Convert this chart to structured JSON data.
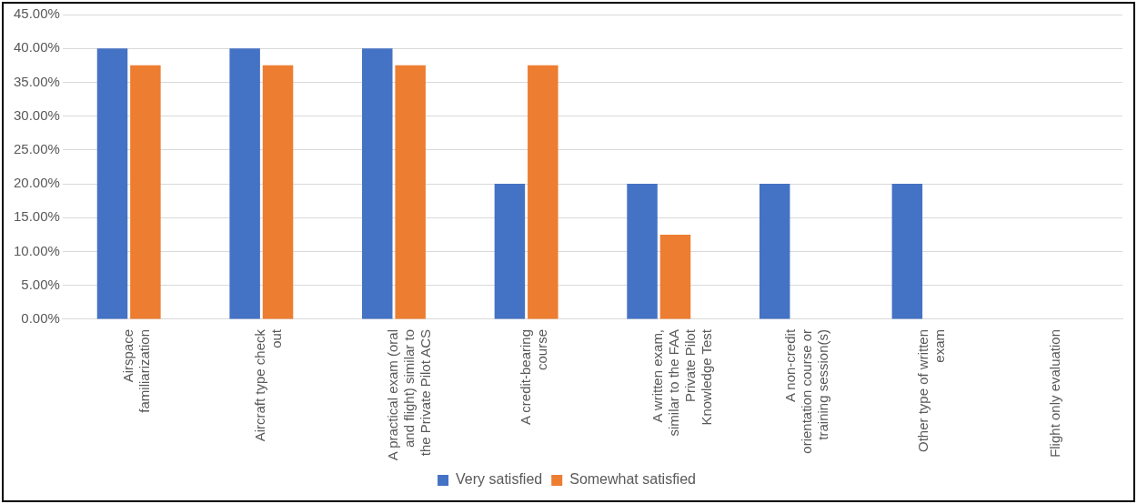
{
  "chart_data": {
    "type": "bar",
    "categories": [
      "Airspace familiarization",
      "Aircraft type check out",
      "A practical exam (oral and flight) similar to the Private Pilot ACS",
      "A credit-bearing course",
      "A written exam, similar to the FAA Private Pilot Knowledge Test",
      "A non-credit orientation course or training session(s)",
      "Other type of written exam",
      "Flight only evaluation"
    ],
    "series": [
      {
        "name": "Very satisfied",
        "color": "#4472c4",
        "values": [
          40,
          40,
          40,
          20,
          20,
          20,
          20,
          0
        ]
      },
      {
        "name": "Somewhat satisfied",
        "color": "#ed7d31",
        "values": [
          37.5,
          37.5,
          37.5,
          37.5,
          12.5,
          0,
          0,
          0
        ]
      }
    ],
    "ylim": [
      0,
      45
    ],
    "yticks": [
      {
        "value": 0,
        "label": "0.00%"
      },
      {
        "value": 5,
        "label": "5.00%"
      },
      {
        "value": 10,
        "label": "10.00%"
      },
      {
        "value": 15,
        "label": "15.00%"
      },
      {
        "value": 20,
        "label": "20.00%"
      },
      {
        "value": 25,
        "label": "25.00%"
      },
      {
        "value": 30,
        "label": "30.00%"
      },
      {
        "value": 35,
        "label": "35.00%"
      },
      {
        "value": 40,
        "label": "40.00%"
      },
      {
        "value": 45,
        "label": "45.00%"
      }
    ],
    "grid": "y",
    "legend": "bottom"
  }
}
